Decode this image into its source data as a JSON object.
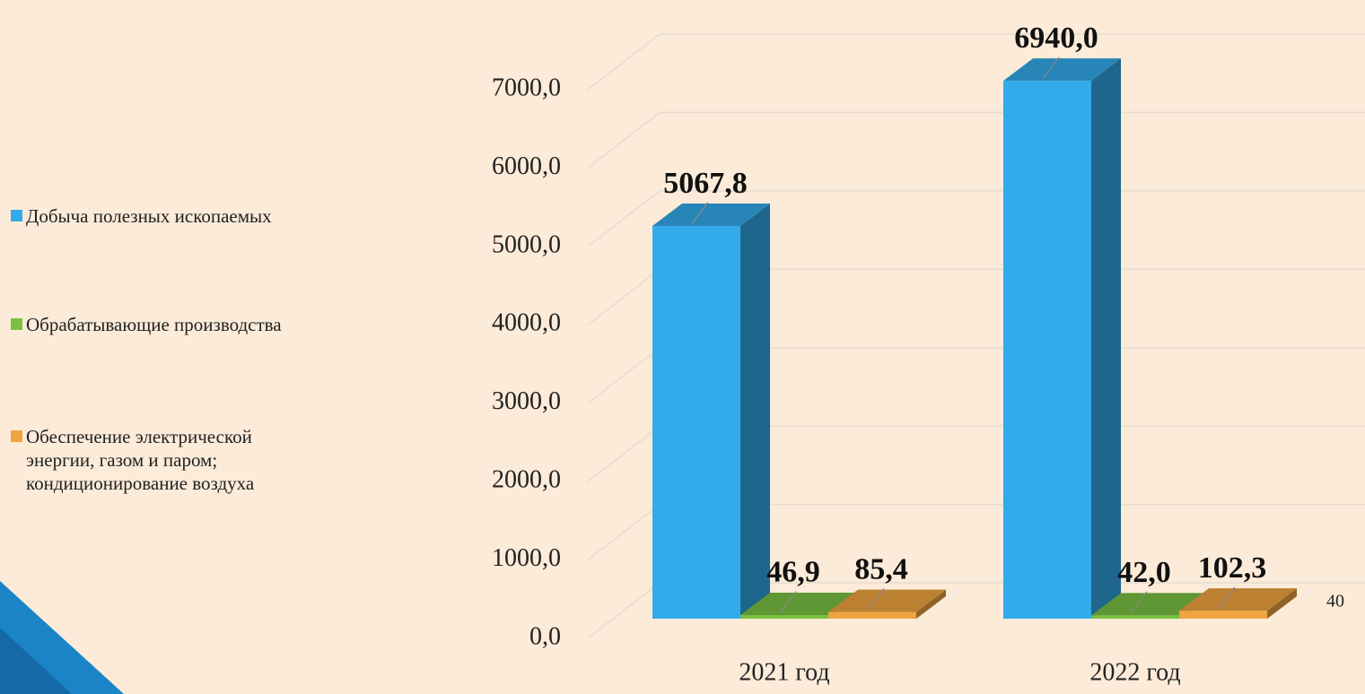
{
  "chart_data": {
    "type": "bar3d",
    "categories": [
      "2021 год",
      "2022 год"
    ],
    "series": [
      {
        "name": "Добыча полезных ископаемых",
        "color": "#33aaea",
        "values": [
          5067.8,
          6940.0
        ],
        "value_labels": [
          "5067,8",
          "6940,0"
        ]
      },
      {
        "name": "Обрабатывающие производства",
        "color": "#7ac143",
        "values": [
          46.9,
          42.0
        ],
        "value_labels": [
          "46,9",
          "42,0"
        ]
      },
      {
        "name": "Обеспечение электрической энергии, газом и паром; кондиционирование воздуха",
        "color": "#f0a440",
        "values": [
          85.4,
          102.3
        ],
        "value_labels": [
          "85,4",
          "102,3"
        ]
      }
    ],
    "ylim": [
      0,
      7000
    ],
    "yticks": [
      {
        "value": 0,
        "label": "0,0"
      },
      {
        "value": 1000,
        "label": "1000,0"
      },
      {
        "value": 2000,
        "label": "2000,0"
      },
      {
        "value": 3000,
        "label": "3000,0"
      },
      {
        "value": 4000,
        "label": "4000,0"
      },
      {
        "value": 5000,
        "label": "5000,0"
      },
      {
        "value": 6000,
        "label": "6000,0"
      },
      {
        "value": 7000,
        "label": "7000,0"
      }
    ],
    "grid": true,
    "legend": "left"
  },
  "page_number": "40"
}
